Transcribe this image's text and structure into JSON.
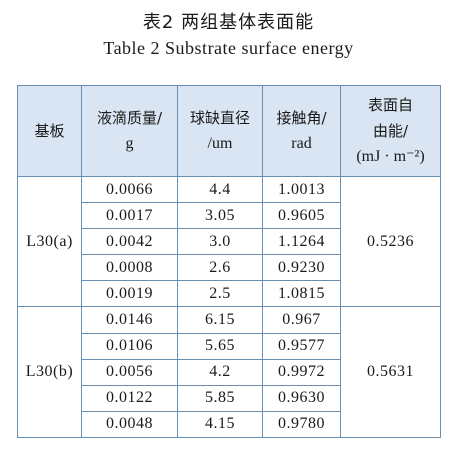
{
  "caption": {
    "zh": "表2 两组基体表面能",
    "en": "Table 2 Substrate surface energy"
  },
  "headers": {
    "substrate": "基板",
    "droplet_mass_l1": "液滴质量/",
    "droplet_mass_l2": "g",
    "sphere_diameter_l1": "球缺直径",
    "sphere_diameter_l2": "/um",
    "contact_angle_l1": "接触角/",
    "contact_angle_l2": "rad",
    "surface_energy_l1": "表面自",
    "surface_energy_l2": "由能/",
    "surface_energy_l3": "(mJ · m⁻²)"
  },
  "groups": [
    {
      "name": "L30(a)",
      "surface_energy": "0.5236",
      "rows": [
        {
          "mass": "0.0066",
          "diameter": "4.4",
          "angle": "1.0013"
        },
        {
          "mass": "0.0017",
          "diameter": "3.05",
          "angle": "0.9605"
        },
        {
          "mass": "0.0042",
          "diameter": "3.0",
          "angle": "1.1264"
        },
        {
          "mass": "0.0008",
          "diameter": "2.6",
          "angle": "0.9230"
        },
        {
          "mass": "0.0019",
          "diameter": "2.5",
          "angle": "1.0815"
        }
      ]
    },
    {
      "name": "L30(b)",
      "surface_energy": "0.5631",
      "rows": [
        {
          "mass": "0.0146",
          "diameter": "6.15",
          "angle": "0.967"
        },
        {
          "mass": "0.0106",
          "diameter": "5.65",
          "angle": "0.9577"
        },
        {
          "mass": "0.0056",
          "diameter": "4.2",
          "angle": "0.9972"
        },
        {
          "mass": "0.0122",
          "diameter": "5.85",
          "angle": "0.9630"
        },
        {
          "mass": "0.0048",
          "diameter": "4.15",
          "angle": "0.9780"
        }
      ]
    }
  ]
}
